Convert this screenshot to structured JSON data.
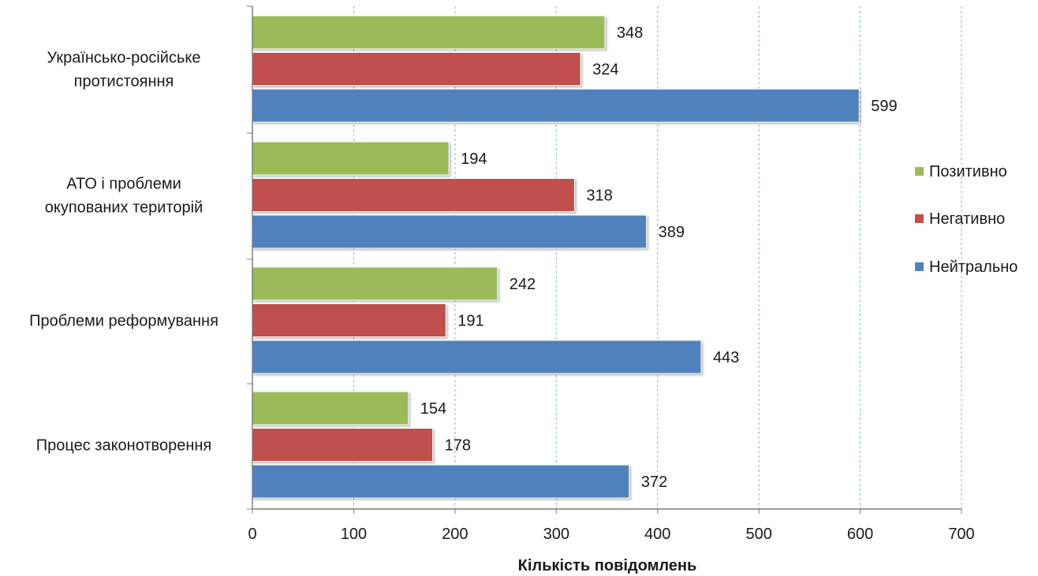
{
  "chart_data": {
    "type": "bar",
    "orientation": "horizontal",
    "categories": [
      [
        "Українсько-російське",
        "протистояння"
      ],
      [
        "АТО і проблеми",
        "окупованих територій"
      ],
      [
        "Проблеми реформування"
      ],
      [
        "Процес законотворення"
      ]
    ],
    "series": [
      {
        "name": "Позитивно",
        "color": "#9bbb59",
        "values": [
          348,
          194,
          242,
          154
        ]
      },
      {
        "name": "Негативно",
        "color": "#c0504d",
        "values": [
          324,
          318,
          191,
          178
        ]
      },
      {
        "name": "Нейтрально",
        "color": "#4f81bd",
        "values": [
          599,
          389,
          443,
          372
        ]
      }
    ],
    "xlabel": "Кількість повідомлень",
    "ylabel": "",
    "xlim": [
      0,
      700
    ],
    "xticks": [
      0,
      100,
      200,
      300,
      400,
      500,
      600,
      700
    ],
    "grid": "vertical dashed",
    "legend_position": "right"
  }
}
